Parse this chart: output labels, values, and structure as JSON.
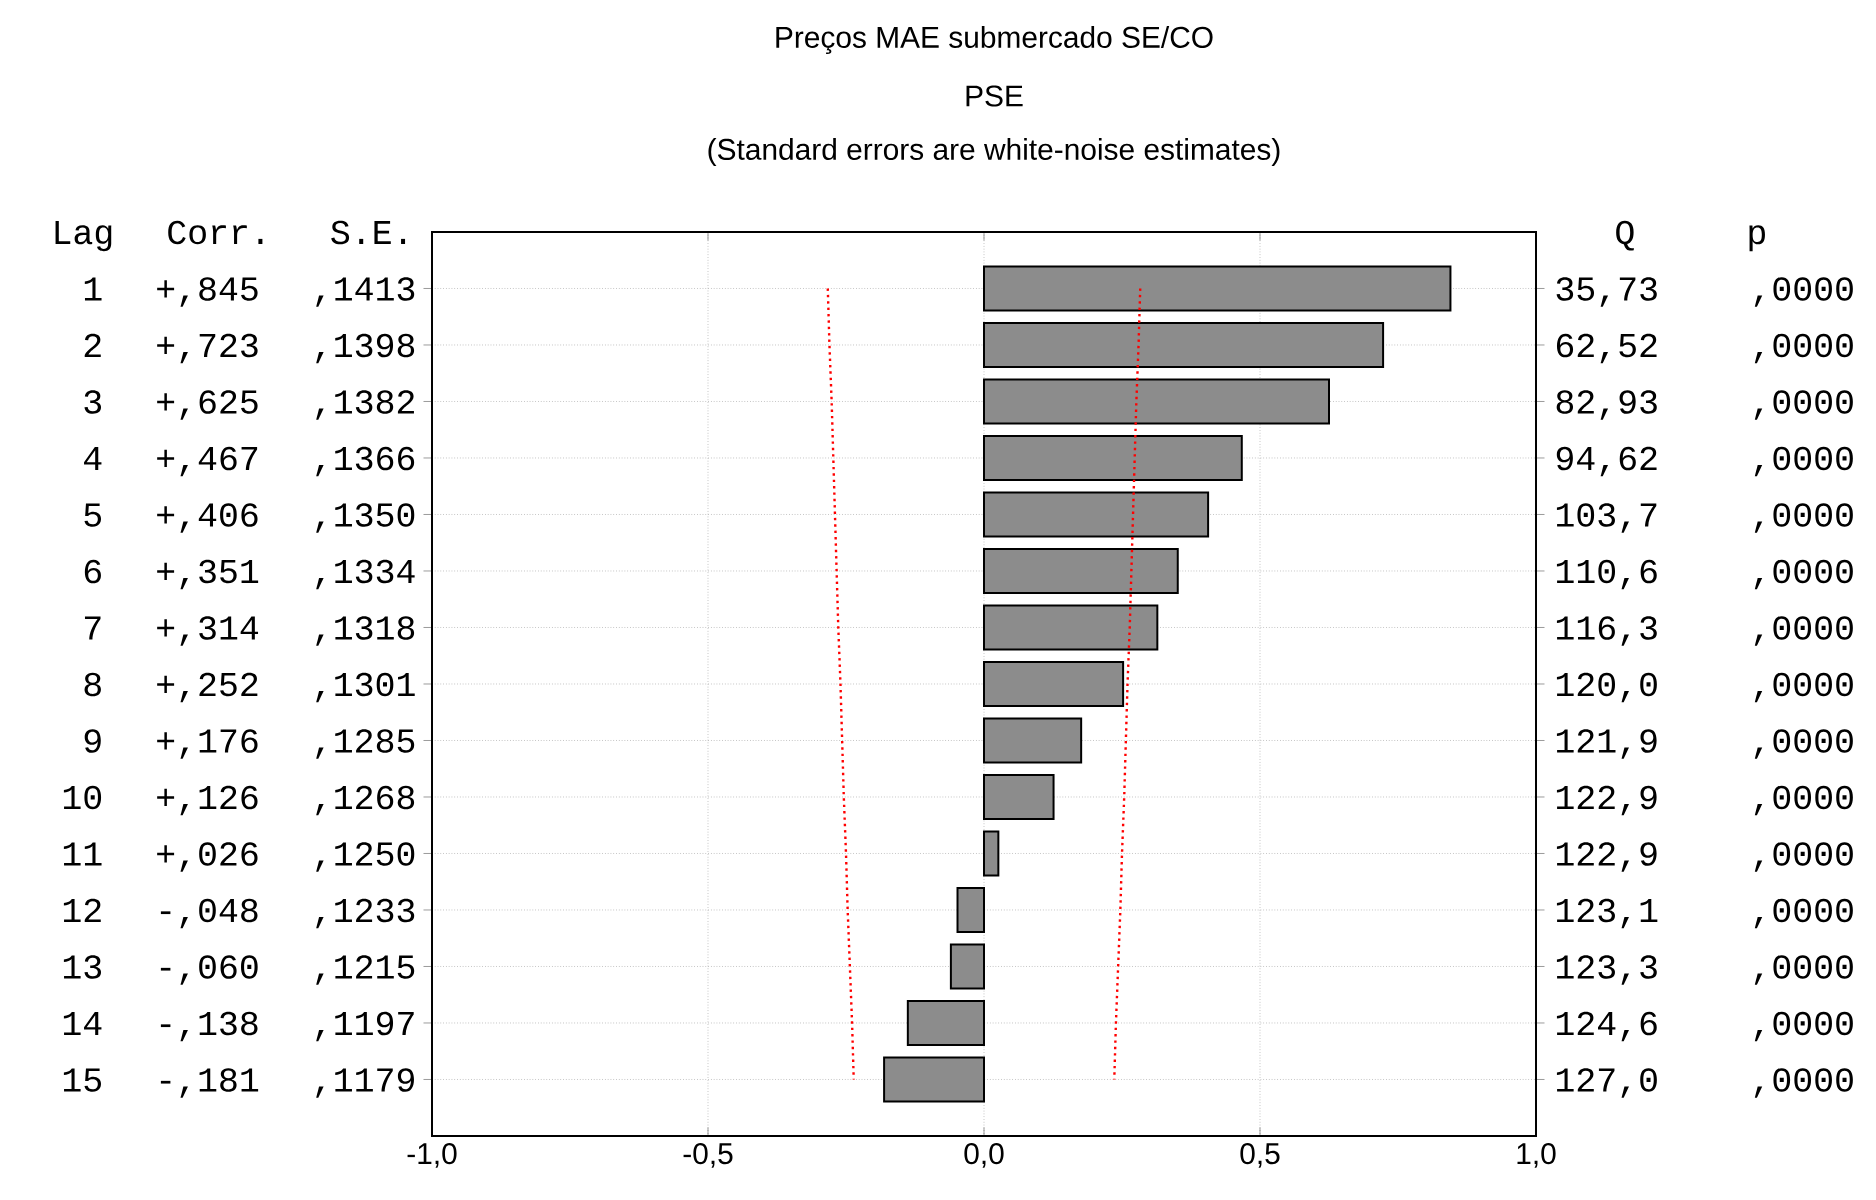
{
  "chart_data": {
    "type": "bar",
    "orientation": "horizontal",
    "title": "Preços MAE submercado SE/CO",
    "subtitle": "PSE",
    "annotations": [
      "(Standard errors are white-noise estimates)",
      "Lag Corr. S.E.",
      "Q",
      "p",
      "35,73",
      "62,52",
      "82,93",
      "94,62",
      "103,7",
      "110,6",
      "116,3",
      "120,0",
      "121,9",
      "122,9",
      "122,9",
      "123,1",
      "123,3",
      "124,6",
      "127,0",
      ",0000",
      ",0000",
      ",0000",
      ",0000",
      ",0000",
      ",0000",
      ",0000",
      ",0000",
      ",0000",
      ",0000",
      ",0000",
      ",0000",
      ",0000",
      ",0000",
      ",0000"
    ],
    "categories": [
      "1 +,845 ,1413",
      "2 +,723 ,1398",
      "3 +,625 ,1382",
      "4 +,467 ,1366",
      "5 +,406 ,1350",
      "6 +,351 ,1334",
      "7 +,314 ,1318",
      "8 +,252 ,1301",
      "9 +,176 ,1285",
      "10 +,126 ,1268",
      "11 +,026 ,1250",
      "12 -,048 ,1233",
      "13 -,060 ,1215",
      "14 -,138 ,1197",
      "15 -,181 ,1179"
    ],
    "series": [
      {
        "color": "#8c8c8c",
        "values": [
          0.845,
          0.723,
          0.625,
          0.467,
          0.406,
          0.351,
          0.314,
          0.252,
          0.176,
          0.126,
          0.026,
          -0.048,
          -0.06,
          -0.138,
          -0.181
        ]
      },
      {
        "type": "line",
        "color": "#ff0000",
        "line_style": "dotted",
        "values": [
          0.283,
          0.28,
          0.276,
          0.273,
          0.27,
          0.267,
          0.264,
          0.26,
          0.257,
          0.254,
          0.25,
          0.247,
          0.243,
          0.239,
          0.236
        ]
      },
      {
        "type": "line",
        "color": "#ff0000",
        "line_style": "dotted",
        "values": [
          -0.283,
          -0.28,
          -0.276,
          -0.273,
          -0.27,
          -0.267,
          -0.264,
          -0.26,
          -0.257,
          -0.254,
          -0.25,
          -0.247,
          -0.243,
          -0.239,
          -0.236
        ]
      }
    ],
    "xlim": [
      -1,
      1
    ],
    "xticks": [
      {
        "value": -1,
        "label": "-1,0"
      },
      {
        "value": -0.5,
        "label": "-0,5"
      },
      {
        "value": 0,
        "label": "0,0"
      },
      {
        "value": 0.5,
        "label": "0,5"
      },
      {
        "value": 1,
        "label": "1,0"
      }
    ],
    "grid": true
  }
}
